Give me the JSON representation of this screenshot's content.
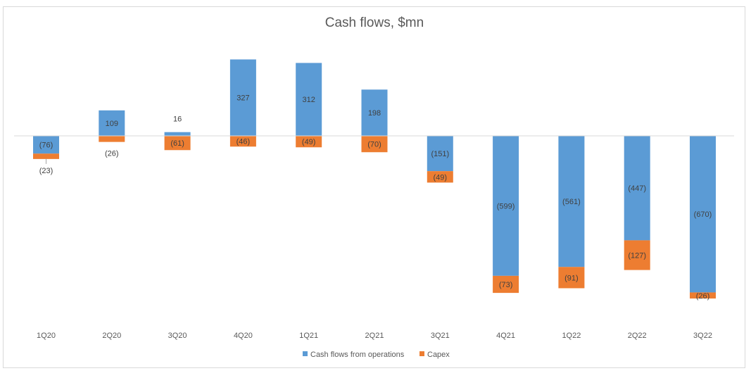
{
  "chart_data": {
    "type": "bar",
    "stacked": true,
    "title": "Cash flows, $mn",
    "xlabel": "",
    "ylabel": "",
    "categories": [
      "1Q20",
      "2Q20",
      "3Q20",
      "4Q20",
      "1Q21",
      "2Q21",
      "3Q21",
      "4Q21",
      "1Q22",
      "2Q22",
      "3Q22"
    ],
    "series": [
      {
        "name": "Cash flows from operations",
        "color": "#5B9BD5",
        "values": [
          -76,
          109,
          16,
          327,
          312,
          198,
          -151,
          -599,
          -561,
          -447,
          -670
        ],
        "labels": [
          "(76)",
          "109",
          "16",
          "327",
          "312",
          "198",
          "(151)",
          "(599)",
          "(561)",
          "(447)",
          "(670)"
        ]
      },
      {
        "name": "Capex",
        "color": "#ED7D31",
        "values": [
          -23,
          -26,
          -61,
          -46,
          -49,
          -70,
          -49,
          -73,
          -91,
          -127,
          -26
        ],
        "labels": [
          "(23)",
          "(26)",
          "(61)",
          "(46)",
          "(49)",
          "(70)",
          "(49)",
          "(73)",
          "(91)",
          "(127)",
          "(26)"
        ]
      }
    ],
    "ylim": [
      -760,
      370
    ],
    "grid": false,
    "legend_position": "bottom"
  }
}
